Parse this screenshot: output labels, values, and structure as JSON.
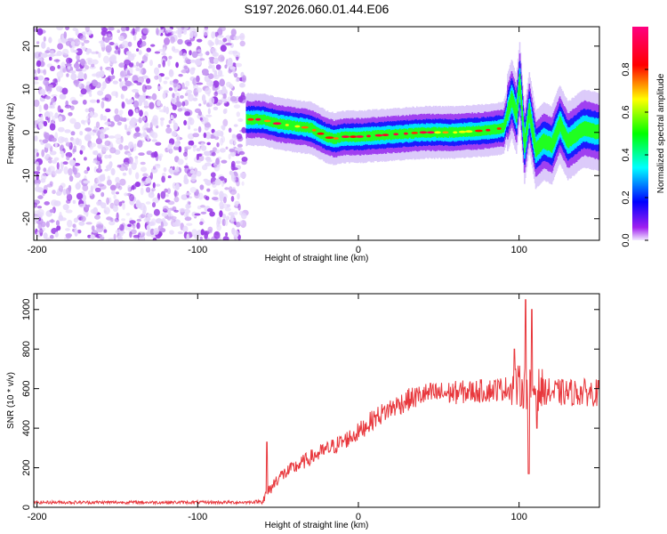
{
  "title": "S197.2026.060.01.44.E06",
  "chart_data": [
    {
      "type": "heatmap",
      "name": "spectrogram",
      "xlabel": "Height of straight line (km)",
      "ylabel": "Frequency (Hz)",
      "xlim": [
        -202,
        150
      ],
      "ylim": [
        -25,
        24.5
      ],
      "xticks": [
        -200,
        -100,
        0,
        100
      ],
      "yticks": [
        -20,
        -10,
        0,
        10,
        20
      ],
      "colorbar": {
        "label": "Normalized spectral amplitude",
        "range": [
          0,
          1
        ],
        "ticks": [
          0.0,
          0.2,
          0.4,
          0.6,
          0.8
        ]
      },
      "noise_region_x": [
        -202,
        -70
      ],
      "ridge": {
        "x": [
          -70,
          -60,
          -50,
          -40,
          -30,
          -20,
          -15,
          -10,
          0,
          20,
          40,
          60,
          80,
          90,
          95,
          98,
          100,
          103,
          106,
          110,
          115,
          120,
          125,
          130,
          140,
          150
        ],
        "freq": [
          3,
          3,
          2,
          1.5,
          1,
          -1,
          -1.5,
          -1,
          -1,
          -0.5,
          0,
          0,
          0.5,
          1,
          8,
          4,
          12,
          -3,
          5,
          -4,
          -2,
          -3,
          2,
          -2,
          1,
          0
        ]
      }
    },
    {
      "type": "line",
      "name": "snr",
      "xlabel": "Height of straight line (km)",
      "ylabel": "SNR (10 * v/v)",
      "xlim": [
        -202,
        150
      ],
      "ylim": [
        0,
        1080
      ],
      "xticks": [
        -200,
        -100,
        0,
        100
      ],
      "yticks": [
        0,
        200,
        400,
        600,
        800,
        1000
      ],
      "color": "#e8383d",
      "trend": {
        "x": [
          -202,
          -70,
          -60,
          -50,
          -40,
          -30,
          -20,
          -10,
          0,
          10,
          20,
          30,
          40,
          60,
          80,
          90,
          100,
          110,
          120,
          130,
          150
        ],
        "y": [
          25,
          25,
          30,
          150,
          200,
          250,
          290,
          330,
          380,
          450,
          500,
          540,
          570,
          580,
          590,
          600,
          610,
          600,
          580,
          580,
          580
        ]
      },
      "spikes": [
        {
          "x": -57,
          "y": 330
        },
        {
          "x": 97,
          "y": 800
        },
        {
          "x": 104,
          "y": 1050
        },
        {
          "x": 106,
          "y": 170
        },
        {
          "x": 108,
          "y": 1000
        },
        {
          "x": 111,
          "y": 400
        }
      ]
    }
  ]
}
